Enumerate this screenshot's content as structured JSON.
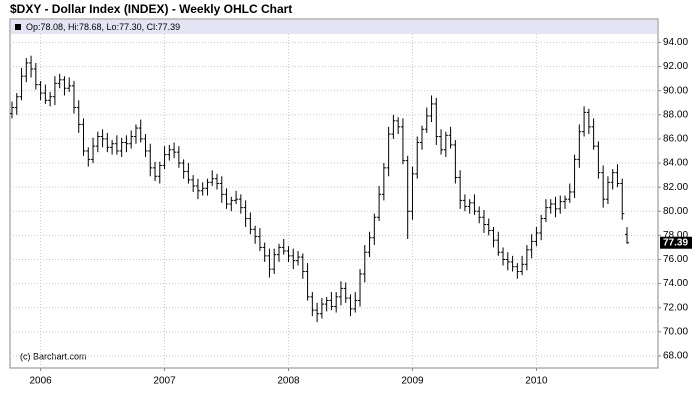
{
  "chart_data": {
    "type": "ohlc",
    "title": "$DXY - Dollar Index (INDEX) - Weekly OHLC Chart",
    "info": "Op:78.08, Hi:78.68, Lo:77.30, Cl:77.39",
    "watermark": "(c) Barchart.com",
    "color": "#000000",
    "grid": true,
    "categories": [
      null,
      null,
      null,
      null,
      null,
      null,
      "2006",
      null,
      null,
      null,
      null,
      null,
      null,
      null,
      null,
      null,
      null,
      null,
      null,
      null,
      null,
      null,
      null,
      null,
      null,
      null,
      null,
      null,
      null,
      null,
      null,
      null,
      "2007",
      null,
      null,
      null,
      null,
      null,
      null,
      null,
      null,
      null,
      null,
      null,
      null,
      null,
      null,
      null,
      null,
      null,
      null,
      null,
      null,
      null,
      null,
      null,
      null,
      null,
      "2008",
      null,
      null,
      null,
      null,
      null,
      null,
      null,
      null,
      null,
      null,
      null,
      null,
      null,
      null,
      null,
      null,
      null,
      null,
      null,
      null,
      null,
      null,
      null,
      null,
      null,
      "2009",
      null,
      null,
      null,
      null,
      null,
      null,
      null,
      null,
      null,
      null,
      null,
      null,
      null,
      null,
      null,
      null,
      null,
      null,
      null,
      null,
      null,
      null,
      null,
      null,
      null,
      "2010",
      null,
      null,
      null,
      null,
      null,
      null,
      null,
      null,
      null,
      null,
      null,
      null,
      null,
      null,
      null,
      null,
      null,
      null,
      null
    ],
    "open": [
      88.1,
      88.6,
      89.5,
      91.2,
      92.3,
      91.8,
      90.5,
      89.8,
      89.2,
      89.5,
      90.6,
      90.9,
      90.2,
      90.4,
      88.6,
      87.2,
      85.0,
      84.3,
      85.4,
      86.2,
      86.0,
      85.3,
      85.6,
      85.0,
      85.7,
      85.6,
      86.2,
      86.9,
      86.0,
      85.0,
      83.6,
      82.9,
      83.8,
      84.7,
      85.1,
      84.9,
      84.0,
      83.3,
      82.6,
      82.1,
      81.7,
      81.9,
      82.4,
      82.7,
      82.3,
      81.4,
      80.6,
      80.9,
      81.0,
      80.3,
      79.4,
      78.5,
      77.9,
      77.0,
      76.3,
      75.2,
      76.4,
      77.0,
      76.7,
      76.3,
      75.9,
      76.2,
      75.0,
      72.9,
      71.8,
      71.5,
      72.3,
      72.6,
      72.1,
      72.9,
      73.6,
      72.8,
      71.9,
      72.6,
      74.8,
      76.6,
      77.8,
      79.5,
      81.4,
      83.6,
      86.4,
      87.5,
      87.0,
      84.2,
      80.0,
      83.1,
      85.7,
      86.8,
      87.9,
      88.9,
      86.2,
      85.1,
      86.3,
      85.5,
      82.8,
      80.9,
      80.4,
      80.7,
      80.0,
      79.5,
      78.9,
      78.4,
      77.6,
      76.6,
      76.0,
      75.8,
      75.4,
      75.0,
      75.6,
      76.8,
      77.5,
      78.2,
      79.4,
      80.3,
      80.6,
      80.2,
      80.8,
      81.0,
      81.6,
      84.3,
      86.6,
      88.2,
      87.0,
      85.4,
      83.2,
      81.0,
      82.4,
      83.2,
      82.3,
      78.08
    ],
    "high": [
      89.1,
      89.8,
      91.9,
      92.7,
      92.9,
      92.3,
      90.8,
      90.5,
      89.9,
      91.2,
      91.4,
      91.2,
      91.1,
      90.8,
      89.2,
      87.7,
      85.3,
      86.1,
      86.6,
      86.8,
      86.5,
      85.9,
      86.3,
      86.1,
      86.3,
      86.7,
      87.2,
      87.6,
      86.4,
      85.6,
      84.1,
      84.1,
      85.4,
      85.5,
      85.7,
      85.4,
      84.3,
      84.0,
      83.0,
      82.7,
      82.4,
      82.7,
      83.4,
      83.1,
      82.9,
      81.9,
      81.2,
      81.7,
      81.4,
      80.9,
      79.9,
      78.8,
      78.6,
      77.4,
      76.9,
      76.9,
      77.3,
      77.7,
      77.1,
      76.9,
      76.7,
      76.5,
      75.7,
      73.3,
      72.4,
      72.8,
      72.9,
      73.3,
      73.3,
      74.2,
      74.1,
      73.1,
      73.3,
      75.2,
      77.2,
      78.3,
      79.8,
      82.1,
      84.0,
      87.0,
      88.0,
      87.8,
      87.7,
      84.6,
      83.7,
      86.2,
      87.1,
      88.6,
      89.6,
      89.4,
      86.8,
      86.6,
      87.0,
      85.9,
      83.4,
      81.4,
      81.0,
      81.4,
      80.4,
      80.1,
      79.4,
      78.7,
      78.3,
      77.0,
      76.6,
      76.3,
      75.7,
      76.3,
      77.2,
      78.1,
      78.7,
      79.7,
      81.0,
      81.0,
      81.2,
      81.3,
      81.3,
      82.3,
      84.7,
      87.2,
      88.7,
      88.5,
      87.7,
      85.8,
      83.8,
      82.9,
      83.5,
      83.9,
      82.7,
      78.68
    ],
    "low": [
      87.7,
      88.0,
      89.2,
      90.7,
      91.1,
      90.1,
      89.2,
      88.9,
      88.7,
      88.8,
      90.2,
      89.6,
      89.9,
      88.1,
      86.5,
      84.6,
      83.7,
      84.0,
      84.9,
      85.3,
      84.9,
      84.7,
      84.7,
      84.5,
      84.9,
      85.2,
      85.6,
      85.7,
      84.5,
      82.9,
      82.5,
      82.3,
      83.5,
      84.2,
      84.4,
      83.6,
      82.7,
      82.3,
      81.6,
      81.0,
      81.3,
      81.3,
      82.1,
      81.8,
      80.7,
      80.2,
      80.0,
      80.6,
      79.8,
      78.7,
      78.1,
      77.3,
      76.7,
      75.8,
      74.5,
      74.8,
      75.8,
      76.4,
      75.8,
      75.2,
      75.5,
      74.4,
      72.6,
      71.3,
      70.8,
      71.1,
      71.7,
      71.8,
      71.6,
      72.2,
      72.4,
      71.3,
      71.6,
      72.1,
      74.1,
      76.2,
      77.2,
      79.2,
      80.9,
      82.9,
      86.0,
      86.4,
      83.9,
      77.7,
      79.3,
      82.7,
      85.1,
      86.5,
      87.4,
      85.5,
      84.7,
      84.5,
      85.2,
      82.3,
      80.2,
      80.0,
      79.8,
      79.7,
      79.0,
      78.2,
      78.0,
      77.0,
      76.3,
      75.5,
      75.1,
      75.0,
      74.4,
      74.7,
      75.1,
      76.1,
      77.1,
      77.6,
      79.1,
      79.8,
      79.5,
      79.8,
      80.2,
      80.7,
      81.1,
      83.6,
      86.2,
      86.4,
      85.1,
      82.7,
      80.3,
      80.6,
      81.8,
      82.0,
      79.3,
      77.3
    ],
    "close": [
      88.6,
      89.5,
      91.2,
      92.3,
      91.8,
      90.5,
      89.8,
      89.2,
      89.5,
      90.6,
      90.9,
      90.2,
      90.4,
      88.6,
      87.2,
      85.0,
      84.3,
      85.4,
      86.2,
      86.0,
      85.3,
      85.6,
      85.0,
      85.7,
      85.6,
      86.2,
      86.9,
      86.0,
      85.0,
      83.6,
      82.9,
      83.8,
      84.7,
      85.1,
      84.9,
      84.0,
      83.3,
      82.6,
      82.1,
      81.7,
      81.9,
      82.4,
      82.7,
      82.3,
      81.4,
      80.6,
      80.9,
      81.0,
      80.3,
      79.4,
      78.5,
      77.9,
      77.0,
      76.3,
      75.2,
      76.4,
      77.0,
      76.7,
      76.3,
      75.9,
      76.2,
      75.0,
      72.9,
      71.8,
      71.5,
      72.3,
      72.6,
      72.1,
      72.9,
      73.6,
      72.8,
      71.9,
      72.6,
      74.8,
      76.6,
      77.8,
      79.5,
      81.4,
      83.6,
      86.4,
      87.5,
      87.0,
      84.2,
      80.0,
      83.1,
      85.7,
      86.8,
      87.9,
      88.9,
      86.2,
      85.1,
      86.3,
      85.5,
      82.8,
      80.9,
      80.4,
      80.7,
      80.0,
      79.5,
      78.9,
      78.4,
      77.6,
      76.6,
      76.0,
      75.8,
      75.4,
      75.0,
      75.6,
      76.8,
      77.5,
      78.2,
      79.4,
      80.3,
      80.6,
      80.2,
      80.8,
      81.0,
      81.6,
      84.3,
      86.6,
      88.2,
      87.0,
      85.4,
      83.2,
      81.0,
      82.4,
      83.2,
      82.3,
      79.8,
      77.39
    ],
    "ylim": [
      67,
      94.7
    ],
    "yticks": [
      {
        "value": 68,
        "label": "68.00"
      },
      {
        "value": 70,
        "label": "70.00"
      },
      {
        "value": 72,
        "label": "72.00"
      },
      {
        "value": 74,
        "label": "74.00"
      },
      {
        "value": 76,
        "label": "76.00"
      },
      {
        "value": 78,
        "label": "78.00"
      },
      {
        "value": 80,
        "label": "80.00"
      },
      {
        "value": 82,
        "label": "82.00"
      },
      {
        "value": 84,
        "label": "84.00"
      },
      {
        "value": 86,
        "label": "86.00"
      },
      {
        "value": 88,
        "label": "88.00"
      },
      {
        "value": 90,
        "label": "90.00"
      },
      {
        "value": 92,
        "label": "92.00"
      },
      {
        "value": 94,
        "label": "94.00"
      }
    ]
  }
}
